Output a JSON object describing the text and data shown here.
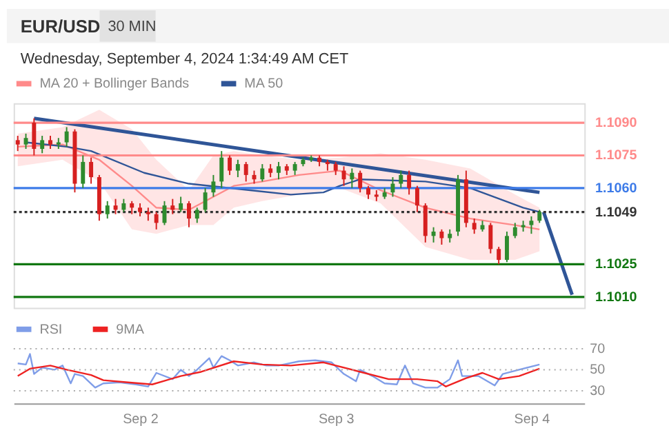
{
  "chart_data": [
    {
      "type": "candlestick",
      "title": "EUR/USD",
      "subtitle": "Wednesday, September 4, 2024 1:34:49 AM CET",
      "annotations": [
        "30 MIN"
      ],
      "x": [
        "2024-09-01T09:00",
        "2024-09-01T10:00",
        "2024-09-01T11:00",
        "2024-09-01T12:00",
        "2024-09-01T13:00",
        "2024-09-01T14:00",
        "2024-09-01T15:00",
        "2024-09-01T16:00",
        "2024-09-01T17:00",
        "2024-09-01T18:00",
        "2024-09-01T19:00",
        "2024-09-01T20:00",
        "2024-09-01T21:00",
        "2024-09-01T22:00",
        "2024-09-01T23:00",
        "2024-09-02T00:00",
        "2024-09-02T01:00",
        "2024-09-02T02:00",
        "2024-09-02T03:00",
        "2024-09-02T04:00",
        "2024-09-02T05:00",
        "2024-09-02T06:00",
        "2024-09-02T07:00",
        "2024-09-02T08:00",
        "2024-09-02T09:00",
        "2024-09-02T10:00",
        "2024-09-02T11:00",
        "2024-09-02T12:00",
        "2024-09-02T13:00",
        "2024-09-02T14:00",
        "2024-09-02T15:00",
        "2024-09-02T16:00",
        "2024-09-02T17:00",
        "2024-09-02T18:00",
        "2024-09-02T19:00",
        "2024-09-02T20:00",
        "2024-09-02T21:00",
        "2024-09-02T22:00",
        "2024-09-02T23:00",
        "2024-09-03T00:00",
        "2024-09-03T01:00",
        "2024-09-03T02:00",
        "2024-09-03T03:00",
        "2024-09-03T04:00",
        "2024-09-03T05:00",
        "2024-09-03T06:00",
        "2024-09-03T07:00",
        "2024-09-03T08:00",
        "2024-09-03T09:00",
        "2024-09-03T10:00",
        "2024-09-03T11:00",
        "2024-09-03T12:00",
        "2024-09-03T13:00",
        "2024-09-03T14:00",
        "2024-09-03T15:00",
        "2024-09-03T16:00",
        "2024-09-03T17:00",
        "2024-09-03T18:00",
        "2024-09-03T19:00",
        "2024-09-03T20:00",
        "2024-09-03T21:00",
        "2024-09-03T22:00",
        "2024-09-03T23:00",
        "2024-09-04T00:00",
        "2024-09-04T01:00"
      ],
      "ohlc": [
        [
          1.1082,
          1.1084,
          1.1077,
          1.108
        ],
        [
          1.108,
          1.1085,
          1.1078,
          1.1083
        ],
        [
          1.109,
          1.1092,
          1.1075,
          1.1078
        ],
        [
          1.1078,
          1.1084,
          1.1076,
          1.1082
        ],
        [
          1.1082,
          1.1084,
          1.1078,
          1.108
        ],
        [
          1.108,
          1.1083,
          1.1078,
          1.1081
        ],
        [
          1.1081,
          1.1088,
          1.1079,
          1.1086
        ],
        [
          1.1086,
          1.1087,
          1.1058,
          1.1062
        ],
        [
          1.1062,
          1.1075,
          1.106,
          1.1072
        ],
        [
          1.1072,
          1.1074,
          1.1062,
          1.1065
        ],
        [
          1.1065,
          1.1066,
          1.1045,
          1.1048
        ],
        [
          1.1048,
          1.1054,
          1.1046,
          1.1052
        ],
        [
          1.1052,
          1.1055,
          1.1048,
          1.105
        ],
        [
          1.105,
          1.1055,
          1.1049,
          1.1053
        ],
        [
          1.1053,
          1.1054,
          1.1048,
          1.1051
        ],
        [
          1.1051,
          1.1053,
          1.1047,
          1.1049
        ],
        [
          1.1049,
          1.1051,
          1.1045,
          1.1048
        ],
        [
          1.1048,
          1.1049,
          1.1041,
          1.1044
        ],
        [
          1.1044,
          1.1054,
          1.1043,
          1.1052
        ],
        [
          1.1052,
          1.1055,
          1.1048,
          1.105
        ],
        [
          1.105,
          1.1056,
          1.1049,
          1.1053
        ],
        [
          1.1053,
          1.1054,
          1.1042,
          1.1046
        ],
        [
          1.1046,
          1.1051,
          1.1044,
          1.105
        ],
        [
          1.105,
          1.106,
          1.1049,
          1.1058
        ],
        [
          1.1058,
          1.1066,
          1.1056,
          1.1063
        ],
        [
          1.1063,
          1.1077,
          1.106,
          1.1074
        ],
        [
          1.1074,
          1.1075,
          1.1066,
          1.1068
        ],
        [
          1.1068,
          1.1073,
          1.1065,
          1.1071
        ],
        [
          1.1071,
          1.1072,
          1.1063,
          1.1066
        ],
        [
          1.1066,
          1.1068,
          1.1062,
          1.1064
        ],
        [
          1.1064,
          1.1071,
          1.1063,
          1.1069
        ],
        [
          1.1069,
          1.1071,
          1.1065,
          1.1067
        ],
        [
          1.1067,
          1.1072,
          1.1064,
          1.107
        ],
        [
          1.107,
          1.1071,
          1.1066,
          1.1068
        ],
        [
          1.1068,
          1.1072,
          1.1066,
          1.1071
        ],
        [
          1.1071,
          1.1074,
          1.107,
          1.1073
        ],
        [
          1.1073,
          1.1075,
          1.1072,
          1.1074
        ],
        [
          1.1074,
          1.1075,
          1.107,
          1.1072
        ],
        [
          1.1072,
          1.1073,
          1.1068,
          1.1071
        ],
        [
          1.1071,
          1.1072,
          1.1066,
          1.1068
        ],
        [
          1.1068,
          1.107,
          1.1061,
          1.1064
        ],
        [
          1.1064,
          1.1069,
          1.106,
          1.1067
        ],
        [
          1.1067,
          1.1068,
          1.1058,
          1.106
        ],
        [
          1.106,
          1.1061,
          1.1055,
          1.1057
        ],
        [
          1.1057,
          1.1059,
          1.1054,
          1.1056
        ],
        [
          1.1056,
          1.106,
          1.1055,
          1.1058
        ],
        [
          1.1058,
          1.1065,
          1.1056,
          1.1062
        ],
        [
          1.1062,
          1.1068,
          1.106,
          1.1066
        ],
        [
          1.1066,
          1.1068,
          1.1057,
          1.106
        ],
        [
          1.106,
          1.1061,
          1.1049,
          1.1052
        ],
        [
          1.1052,
          1.1053,
          1.1035,
          1.1038
        ],
        [
          1.1038,
          1.1042,
          1.1035,
          1.104
        ],
        [
          1.104,
          1.1041,
          1.1034,
          1.1037
        ],
        [
          1.1037,
          1.1041,
          1.1035,
          1.1039
        ],
        [
          1.104,
          1.1066,
          1.1038,
          1.1064
        ],
        [
          1.1064,
          1.1068,
          1.1042,
          1.1044
        ],
        [
          1.1044,
          1.1046,
          1.1039,
          1.1041
        ],
        [
          1.1041,
          1.1045,
          1.104,
          1.1043
        ],
        [
          1.1043,
          1.1044,
          1.103,
          1.1032
        ],
        [
          1.1032,
          1.1033,
          1.1025,
          1.1027
        ],
        [
          1.1027,
          1.104,
          1.1026,
          1.1038
        ],
        [
          1.1038,
          1.1044,
          1.1037,
          1.1042
        ],
        [
          1.1042,
          1.1045,
          1.104,
          1.1043
        ],
        [
          1.1043,
          1.1047,
          1.1039,
          1.1045
        ],
        [
          1.1045,
          1.105,
          1.1044,
          1.1049
        ]
      ],
      "colors": [
        "#d62020",
        "#2e8b2e",
        "#d62020",
        "#2e8b2e",
        "#d62020",
        "#2e8b2e",
        "#2e8b2e",
        "#d62020",
        "#2e8b2e",
        "#d62020",
        "#d62020",
        "#2e8b2e",
        "#d62020",
        "#2e8b2e",
        "#d62020",
        "#d62020",
        "#d62020",
        "#d62020",
        "#2e8b2e",
        "#d62020",
        "#2e8b2e",
        "#d62020",
        "#2e8b2e",
        "#2e8b2e",
        "#2e8b2e",
        "#2e8b2e",
        "#d62020",
        "#2e8b2e",
        "#d62020",
        "#d62020",
        "#2e8b2e",
        "#d62020",
        "#2e8b2e",
        "#d62020",
        "#2e8b2e",
        "#2e8b2e",
        "#2e8b2e",
        "#d62020",
        "#d62020",
        "#d62020",
        "#d62020",
        "#2e8b2e",
        "#d62020",
        "#d62020",
        "#d62020",
        "#2e8b2e",
        "#2e8b2e",
        "#2e8b2e",
        "#d62020",
        "#d62020",
        "#d62020",
        "#2e8b2e",
        "#d62020",
        "#2e8b2e",
        "#2e8b2e",
        "#d62020",
        "#d62020",
        "#2e8b2e",
        "#d62020",
        "#d62020",
        "#2e8b2e",
        "#2e8b2e",
        "#2e8b2e",
        "#2e8b2e",
        "#2e8b2e"
      ],
      "series": [
        {
          "name": "MA 20 + Bollinger Bands",
          "type": "line",
          "color": "#ff8a8a",
          "x": [
            "2024-09-01T09:00",
            "2024-09-01T14:30",
            "2024-09-01T19:00",
            "2024-09-01T23:00",
            "2024-09-02T02:00",
            "2024-09-02T06:00",
            "2024-09-02T09:00",
            "2024-09-02T11:30",
            "2024-09-02T15:00",
            "2024-09-02T19:30",
            "2024-09-03T00:30",
            "2024-09-03T05:30",
            "2024-09-03T11:00",
            "2024-09-03T16:30",
            "2024-09-03T22:00",
            "2024-09-04T01:00"
          ],
          "values": [
            1.1079,
            1.108,
            1.1073,
            1.1061,
            1.1051,
            1.105,
            1.1056,
            1.1061,
            1.1063,
            1.1066,
            1.1068,
            1.1059,
            1.1051,
            1.1046,
            1.1043,
            1.1041
          ],
          "upper": [
            1.1085,
            1.1088,
            1.1096,
            1.1087,
            1.1073,
            1.1059,
            1.1075,
            1.1077,
            1.1075,
            1.1073,
            1.1074,
            1.1076,
            1.1073,
            1.1069,
            1.1057,
            1.1051
          ],
          "lower": [
            1.107,
            1.1073,
            1.1063,
            1.1041,
            1.1039,
            1.1043,
            1.1043,
            1.1051,
            1.1054,
            1.1057,
            1.106,
            1.1053,
            1.1033,
            1.1027,
            1.1027,
            1.1031
          ]
        },
        {
          "name": "MA 50",
          "type": "line",
          "color": "#2f5597",
          "x": [
            "2024-09-01T10:00",
            "2024-09-01T15:00",
            "2024-09-01T18:00",
            "2024-09-02T00:30",
            "2024-09-02T06:00",
            "2024-09-02T13:30",
            "2024-09-02T18:30",
            "2024-09-02T22:30",
            "2024-09-03T00:30",
            "2024-09-03T03:00",
            "2024-09-03T11:00",
            "2024-09-03T16:30",
            "2024-09-03T23:00",
            "2024-09-04T01:00"
          ],
          "values": [
            1.1081,
            1.1079,
            1.1077,
            1.1067,
            1.1062,
            1.1059,
            1.1057,
            1.1058,
            1.1061,
            1.1064,
            1.1063,
            1.106,
            1.1051,
            1.1049
          ]
        },
        {
          "type": "line",
          "color": "#2f5597",
          "x": [
            "2024-09-01T11:00",
            "2024-09-04T01:00"
          ],
          "values": [
            1.1092,
            1.1058
          ]
        },
        {
          "type": "line",
          "color": "#2f5597",
          "x": [
            "2024-09-04T01:30",
            "2024-09-04T05:00"
          ],
          "values": [
            1.1049,
            1.1011
          ]
        }
      ],
      "ref_lines": [
        {
          "axis": "y",
          "value": 1.109,
          "color": "#ff8a8a"
        },
        {
          "axis": "y",
          "value": 1.1075,
          "color": "#ff8a8a"
        },
        {
          "axis": "y",
          "value": 1.106,
          "color": "#3d7be8"
        },
        {
          "axis": "y",
          "value": 1.1049,
          "color": "#333333",
          "line_style": "dotted"
        },
        {
          "axis": "y",
          "value": 1.1025,
          "color": "#117711"
        },
        {
          "axis": "y",
          "value": 1.101,
          "color": "#117711"
        }
      ],
      "xlim": [
        "2024-09-01T08:30",
        "2024-09-04T06:30"
      ],
      "ylim": [
        1.1005,
        1.1099
      ],
      "yticks": [
        {
          "value": 1.109,
          "label": "1.1090"
        },
        {
          "value": 1.1075,
          "label": "1.1075"
        },
        {
          "value": 1.106,
          "label": "1.1060"
        },
        {
          "value": 1.1049,
          "label": "1.1049"
        },
        {
          "value": 1.1025,
          "label": "1.1025"
        },
        {
          "value": 1.101,
          "label": "1.1010"
        }
      ],
      "tick_labels": "y",
      "legend": "top left"
    },
    {
      "type": "line",
      "series": [
        {
          "name": "RSI",
          "color": "#7f9de8",
          "x": [
            "2024-09-01T09:00",
            "2024-09-01T10:00",
            "2024-09-01T10:30",
            "2024-09-01T11:00",
            "2024-09-01T12:00",
            "2024-09-01T13:30",
            "2024-09-01T14:30",
            "2024-09-01T15:30",
            "2024-09-01T16:00",
            "2024-09-01T17:00",
            "2024-09-01T18:30",
            "2024-09-01T19:30",
            "2024-09-01T21:30",
            "2024-09-01T23:30",
            "2024-09-02T01:00",
            "2024-09-02T02:00",
            "2024-09-02T04:00",
            "2024-09-02T05:00",
            "2024-09-02T06:00",
            "2024-09-02T07:00",
            "2024-09-02T08:30",
            "2024-09-02T09:00",
            "2024-09-02T10:00",
            "2024-09-02T11:00",
            "2024-09-02T12:00",
            "2024-09-02T14:00",
            "2024-09-02T15:30",
            "2024-09-02T17:00",
            "2024-09-02T19:30",
            "2024-09-02T21:30",
            "2024-09-02T23:30",
            "2024-09-03T01:00",
            "2024-09-03T02:30",
            "2024-09-03T03:00",
            "2024-09-03T04:30",
            "2024-09-03T06:00",
            "2024-09-03T07:30",
            "2024-09-03T08:30",
            "2024-09-03T09:30",
            "2024-09-03T11:00",
            "2024-09-03T12:30",
            "2024-09-03T14:00",
            "2024-09-03T15:00",
            "2024-09-03T15:30",
            "2024-09-03T17:30",
            "2024-09-03T19:30",
            "2024-09-03T20:30",
            "2024-09-03T22:30",
            "2024-09-04T00:30",
            "2024-09-04T01:00"
          ],
          "values": [
            56,
            55,
            65,
            46,
            52,
            50,
            54,
            37,
            46,
            44,
            33,
            37,
            38,
            36,
            34,
            47,
            41,
            50,
            44,
            50,
            61,
            52,
            63,
            59,
            54,
            57,
            54,
            54,
            58,
            59,
            57,
            46,
            39,
            50,
            44,
            37,
            36,
            54,
            37,
            33,
            33,
            41,
            59,
            44,
            44,
            35,
            46,
            50,
            54,
            55
          ]
        },
        {
          "name": "9MA",
          "color": "#ee2222",
          "x": [
            "2024-09-01T09:00",
            "2024-09-01T10:30",
            "2024-09-01T13:00",
            "2024-09-01T15:00",
            "2024-09-01T18:00",
            "2024-09-01T19:30",
            "2024-09-01T22:30",
            "2024-09-02T01:30",
            "2024-09-02T05:00",
            "2024-09-02T07:30",
            "2024-09-02T11:30",
            "2024-09-02T15:00",
            "2024-09-02T18:30",
            "2024-09-02T22:30",
            "2024-09-03T03:00",
            "2024-09-03T06:30",
            "2024-09-03T10:00",
            "2024-09-03T12:30",
            "2024-09-03T13:30",
            "2024-09-03T16:00",
            "2024-09-03T18:00",
            "2024-09-03T20:00",
            "2024-09-03T22:30",
            "2024-09-04T01:00"
          ],
          "values": [
            44,
            51,
            54,
            50,
            45,
            40,
            38,
            36,
            44,
            48,
            58,
            55,
            54,
            57,
            48,
            41,
            41,
            39,
            34,
            42,
            47,
            41,
            44,
            51
          ]
        }
      ],
      "xlim": [
        "2024-09-01T08:30",
        "2024-09-04T06:30"
      ],
      "xticks": [
        {
          "value": "2024-09-02",
          "label": "Sep 2"
        },
        {
          "value": "2024-09-03",
          "label": "Sep 3"
        },
        {
          "value": "2024-09-04",
          "label": "Sep 4"
        }
      ],
      "ylim": [
        18,
        70
      ],
      "yticks": [
        30,
        50,
        70
      ],
      "grid": "y",
      "legend": "top left"
    }
  ]
}
